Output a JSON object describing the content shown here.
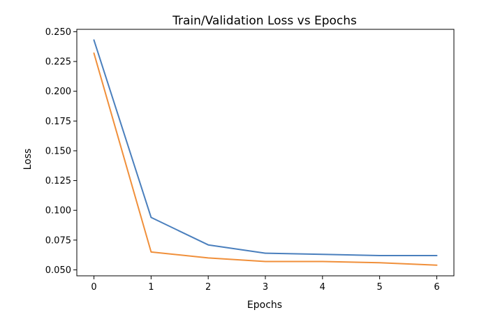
{
  "chart_data": {
    "type": "line",
    "title": "Train/Validation Loss vs Epochs",
    "xlabel": "Epochs",
    "ylabel": "Loss",
    "x": [
      0,
      1,
      2,
      3,
      4,
      5,
      6
    ],
    "xlim": [
      -0.3,
      6.3
    ],
    "ylim": [
      0.045,
      0.252
    ],
    "xticks": [
      "0",
      "1",
      "2",
      "3",
      "4",
      "5",
      "6"
    ],
    "yticks": [
      "0.050",
      "0.075",
      "0.100",
      "0.125",
      "0.150",
      "0.175",
      "0.200",
      "0.225",
      "0.250"
    ],
    "grid": false,
    "series": [
      {
        "color": "#4a7fbd",
        "values": [
          0.243,
          0.094,
          0.071,
          0.064,
          0.063,
          0.062,
          0.062
        ]
      },
      {
        "color": "#f08f3a",
        "values": [
          0.232,
          0.065,
          0.06,
          0.057,
          0.057,
          0.056,
          0.054
        ]
      }
    ]
  }
}
